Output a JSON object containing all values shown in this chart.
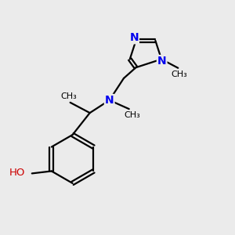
{
  "bg_color": "#ebebeb",
  "bond_color": "#000000",
  "n_color": "#0000ee",
  "o_color": "#cc0000",
  "bond_width": 1.6,
  "fig_size": [
    3.0,
    3.0
  ],
  "dpi": 100,
  "xlim": [
    0,
    10
  ],
  "ylim": [
    0,
    10
  ],
  "font_size": 9
}
